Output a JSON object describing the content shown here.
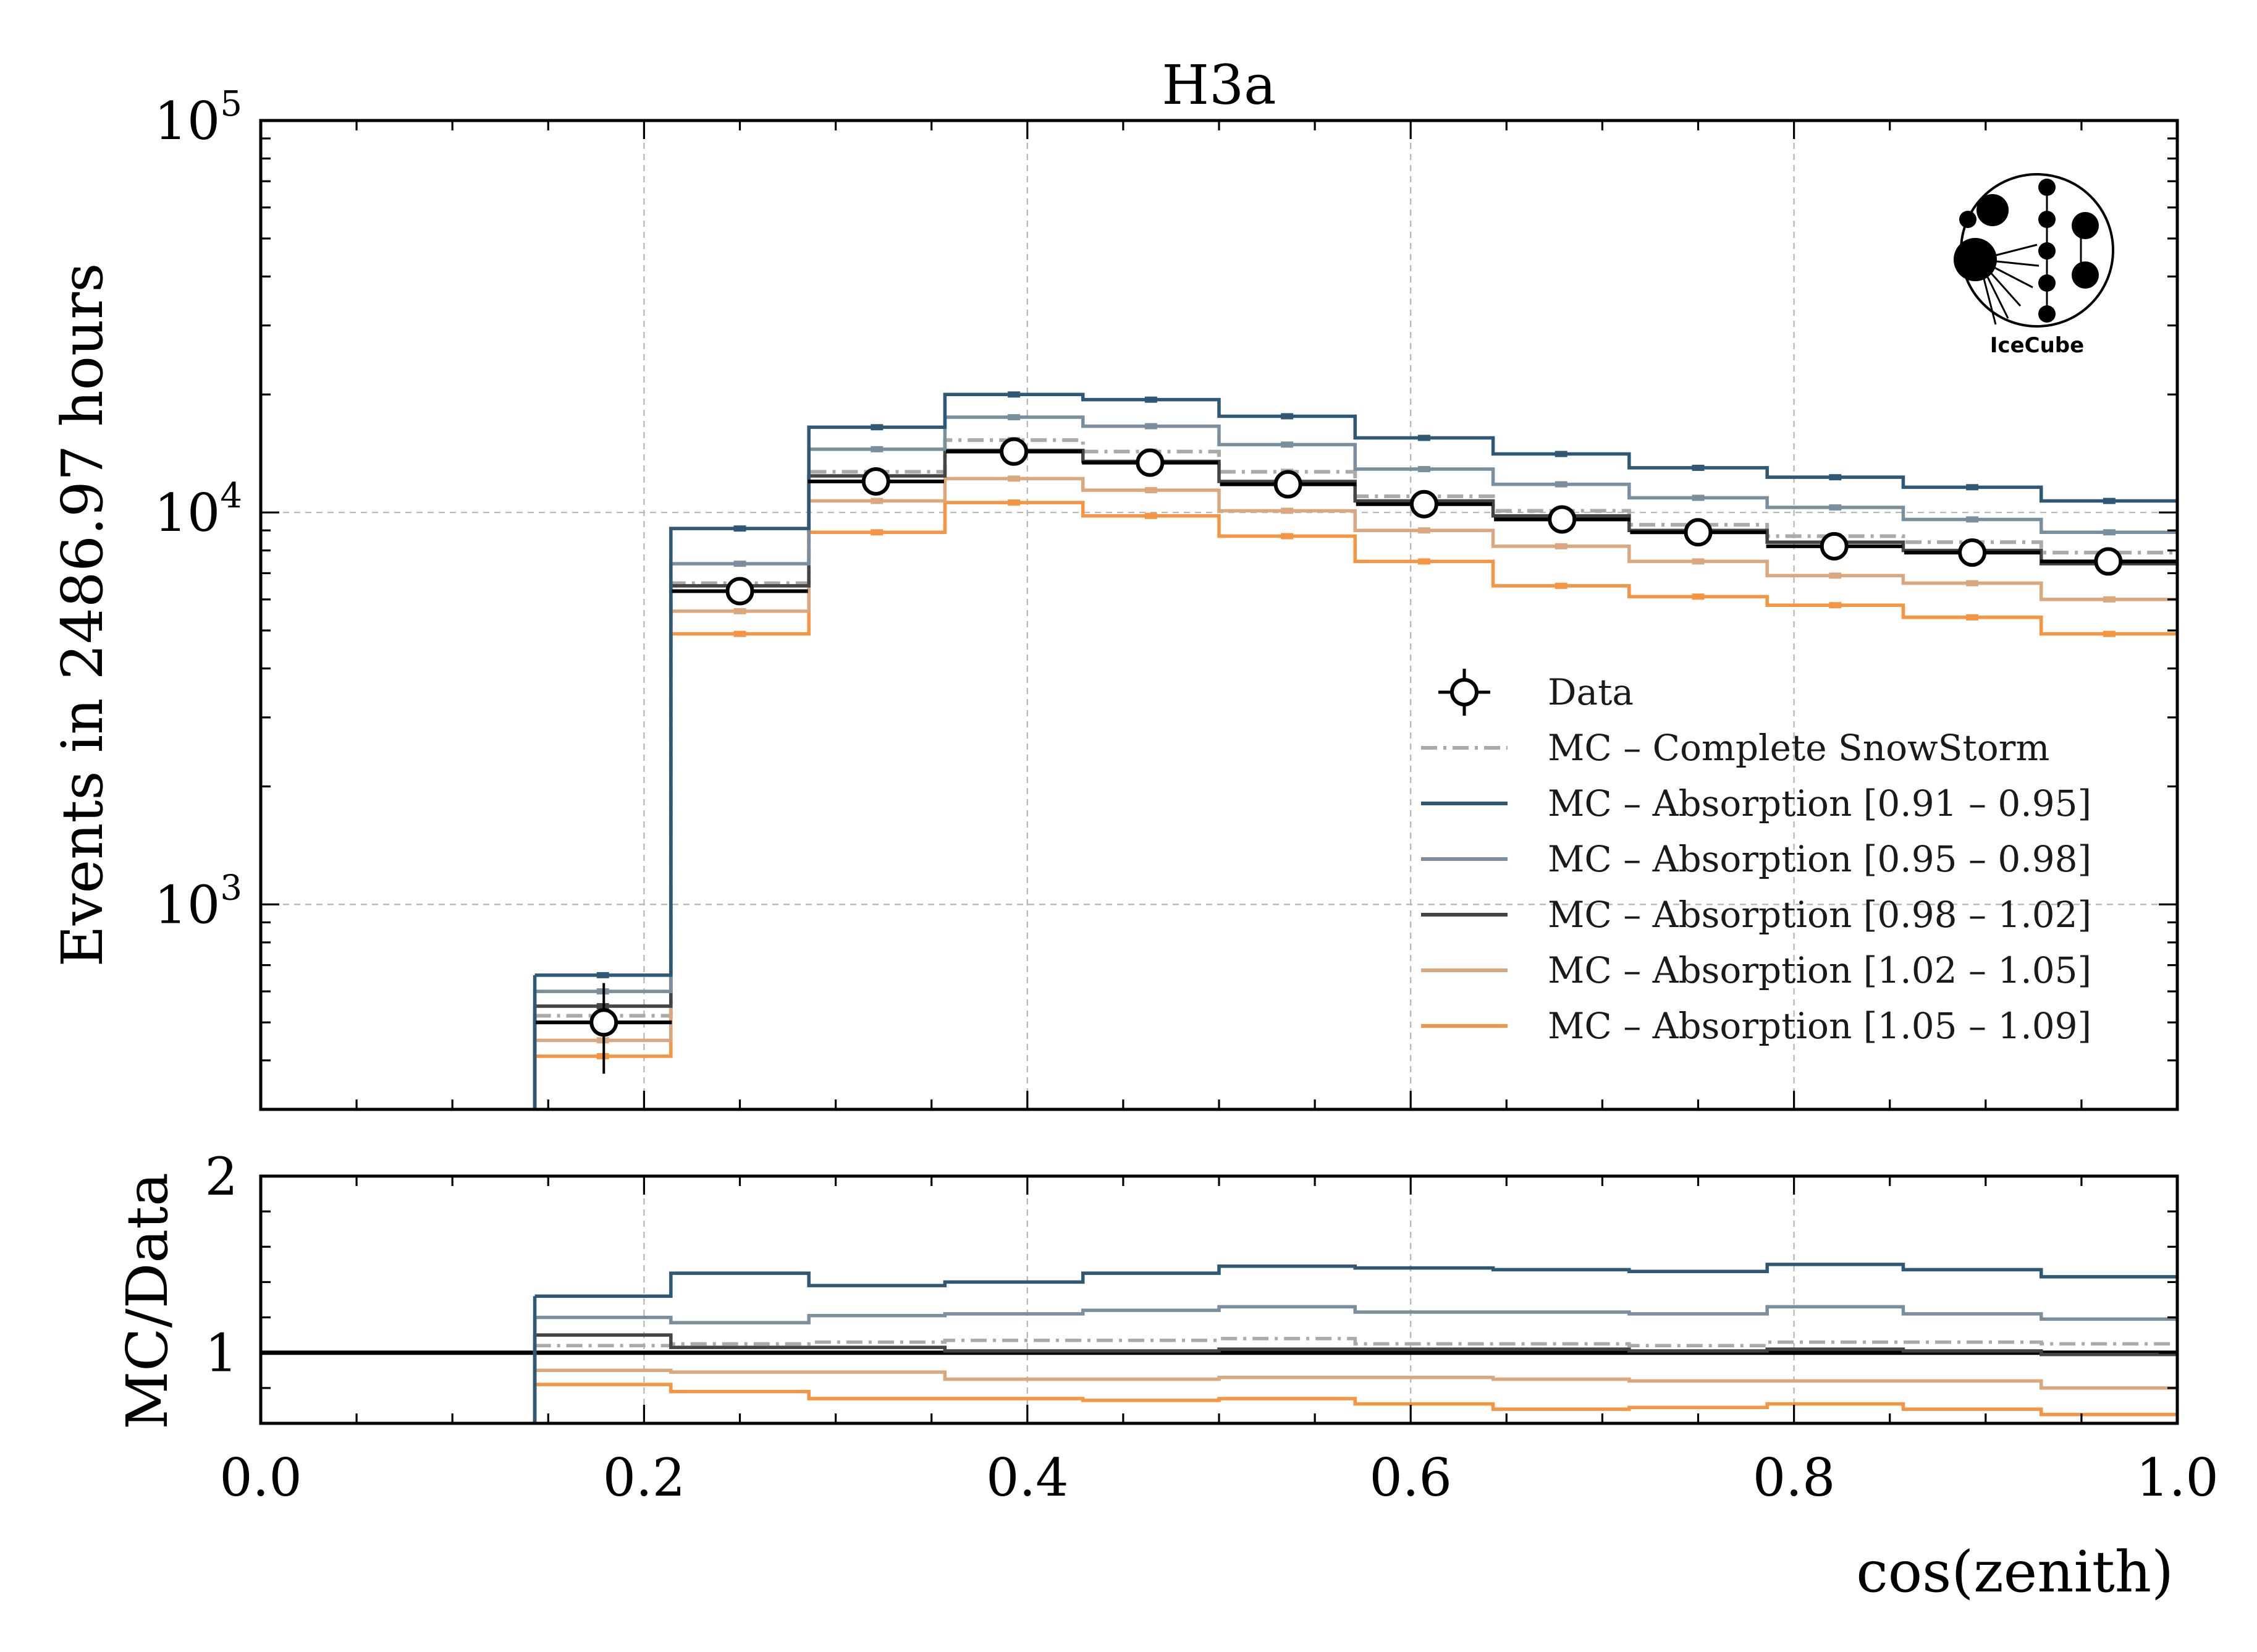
{
  "chart_data": [
    {
      "type": "line",
      "title": "H3a",
      "xlabel": "cos(zenith)",
      "ylabel": "Events in 2486.97 hours",
      "yscale": "log",
      "xlim": [
        0.0,
        1.0
      ],
      "ylim": [
        300,
        100000
      ],
      "grid": true,
      "legend_position": "lower-right",
      "xticks": [
        "0.0",
        "0.2",
        "0.4",
        "0.6",
        "0.8",
        "1.0"
      ],
      "yticks": [
        {
          "base": "10",
          "exp": "3",
          "value": 1000
        },
        {
          "base": "10",
          "exp": "4",
          "value": 10000
        },
        {
          "base": "10",
          "exp": "5",
          "value": 100000
        }
      ],
      "bin_edges": [
        0.143,
        0.214,
        0.286,
        0.357,
        0.429,
        0.5,
        0.571,
        0.643,
        0.714,
        0.786,
        0.857,
        0.929,
        1.0
      ],
      "data": {
        "name": "Data",
        "x": [
          0.179,
          0.25,
          0.321,
          0.393,
          0.464,
          0.536,
          0.607,
          0.679,
          0.75,
          0.821,
          0.893,
          0.964
        ],
        "y": [
          500,
          6300,
          12000,
          14300,
          13400,
          11800,
          10500,
          9600,
          8900,
          8200,
          7900,
          7500
        ],
        "yerr": [
          130,
          150,
          200,
          220,
          210,
          200,
          180,
          170,
          160,
          150,
          150,
          140
        ]
      },
      "series": [
        {
          "name": "MC – Complete SnowStorm",
          "color": "#aaaaaa",
          "dash": "dashdot",
          "values": [
            520,
            6600,
            12700,
            15300,
            14300,
            12700,
            11000,
            10100,
            9300,
            8700,
            8400,
            7900
          ]
        },
        {
          "name": "MC – Absorption [0.91 – 0.95]",
          "color": "#2f5876",
          "dash": "solid",
          "values": [
            660,
            9100,
            16500,
            20000,
            19400,
            17600,
            15500,
            14100,
            13000,
            12300,
            11600,
            10700
          ]
        },
        {
          "name": "MC – Absorption [0.95 – 0.98]",
          "color": "#7a8f9d",
          "dash": "solid",
          "values": [
            600,
            7400,
            14500,
            17500,
            16600,
            14900,
            12900,
            11800,
            10900,
            10300,
            9600,
            8900
          ]
        },
        {
          "name": "MC – Absorption [0.98 – 1.02]",
          "color": "#444444",
          "dash": "solid",
          "values": [
            550,
            6500,
            12400,
            14400,
            13500,
            12000,
            10700,
            9800,
            9000,
            8400,
            8000,
            7400
          ]
        },
        {
          "name": "MC – Absorption [1.02 – 1.05]",
          "color": "#dba77e",
          "dash": "solid",
          "values": [
            450,
            5600,
            10700,
            12200,
            11400,
            10100,
            9000,
            8200,
            7500,
            6900,
            6600,
            6000
          ]
        },
        {
          "name": "MC – Absorption [1.05 – 1.09]",
          "color": "#f59541",
          "dash": "solid",
          "values": [
            410,
            4900,
            8900,
            10600,
            9800,
            8700,
            7500,
            6500,
            6100,
            5800,
            5400,
            4900
          ]
        }
      ]
    },
    {
      "type": "line",
      "xlabel": "cos(zenith)",
      "ylabel": "MC/Data",
      "xlim": [
        0.0,
        1.0
      ],
      "ylim": [
        0.6,
        2.0
      ],
      "grid": true,
      "xticks": [
        "0.0",
        "0.2",
        "0.4",
        "0.6",
        "0.8",
        "1.0"
      ],
      "yticks": [
        {
          "label": "1",
          "value": 1
        },
        {
          "label": "2",
          "value": 2
        }
      ],
      "reference_line": 1.0,
      "bin_edges": [
        0.143,
        0.214,
        0.286,
        0.357,
        0.429,
        0.5,
        0.571,
        0.643,
        0.714,
        0.786,
        0.857,
        0.929,
        1.0
      ],
      "series": [
        {
          "name": "MC – Complete SnowStorm",
          "color": "#aaaaaa",
          "dash": "dashdot",
          "values": [
            1.04,
            1.05,
            1.06,
            1.07,
            1.07,
            1.08,
            1.05,
            1.05,
            1.04,
            1.06,
            1.06,
            1.05
          ]
        },
        {
          "name": "MC – Absorption [0.91 – 0.95]",
          "color": "#2f5876",
          "dash": "solid",
          "values": [
            1.32,
            1.45,
            1.38,
            1.4,
            1.45,
            1.49,
            1.48,
            1.47,
            1.46,
            1.5,
            1.47,
            1.43
          ]
        },
        {
          "name": "MC – Absorption [0.95 – 0.98]",
          "color": "#7a8f9d",
          "dash": "solid",
          "values": [
            1.2,
            1.17,
            1.21,
            1.22,
            1.24,
            1.26,
            1.23,
            1.23,
            1.22,
            1.26,
            1.22,
            1.19
          ]
        },
        {
          "name": "MC – Absorption [0.98 – 1.02]",
          "color": "#444444",
          "dash": "solid",
          "values": [
            1.1,
            1.03,
            1.03,
            1.01,
            1.01,
            1.02,
            1.02,
            1.02,
            1.01,
            1.02,
            1.01,
            0.99
          ]
        },
        {
          "name": "MC – Absorption [1.02 – 1.05]",
          "color": "#dba77e",
          "dash": "solid",
          "values": [
            0.9,
            0.89,
            0.89,
            0.85,
            0.85,
            0.86,
            0.86,
            0.85,
            0.84,
            0.84,
            0.84,
            0.8
          ]
        },
        {
          "name": "MC – Absorption [1.05 – 1.09]",
          "color": "#f59541",
          "dash": "solid",
          "values": [
            0.82,
            0.78,
            0.74,
            0.74,
            0.73,
            0.74,
            0.71,
            0.68,
            0.69,
            0.71,
            0.68,
            0.65
          ]
        }
      ]
    }
  ],
  "logo": {
    "name": "IceCube",
    "text": "IceCube"
  }
}
